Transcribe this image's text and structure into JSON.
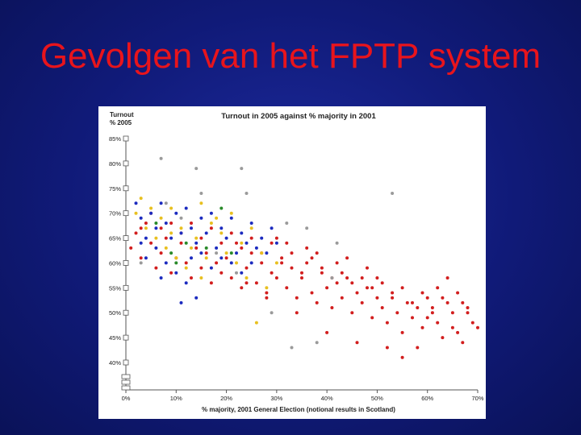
{
  "slide": {
    "title": "Gevolgen van het FPTP system"
  },
  "chart_data": {
    "type": "scatter",
    "title": "Turnout in 2005 against % majority in 2001",
    "ylabel_line1": "Turnout",
    "ylabel_line2": "% 2005",
    "xlabel": "% majority, 2001 General Election (notional results in Scotland)",
    "xlim": [
      0,
      70
    ],
    "ylim": [
      40,
      85
    ],
    "x_ticks": [
      "0%",
      "10%",
      "20%",
      "30%",
      "40%",
      "50%",
      "60%",
      "70%"
    ],
    "y_ticks": [
      "85%",
      "80%",
      "75%",
      "70%",
      "65%",
      "60%",
      "55%",
      "50%",
      "45%",
      "40%"
    ],
    "grid": false,
    "series": [
      {
        "color": "#d21e1e",
        "points": [
          [
            1,
            63
          ],
          [
            2,
            66
          ],
          [
            3,
            61
          ],
          [
            4,
            68
          ],
          [
            5,
            64
          ],
          [
            6,
            59
          ],
          [
            7,
            62
          ],
          [
            8,
            65
          ],
          [
            9,
            58
          ],
          [
            10,
            61
          ],
          [
            11,
            64
          ],
          [
            12,
            60
          ],
          [
            13,
            57
          ],
          [
            14,
            63
          ],
          [
            15,
            59
          ],
          [
            16,
            62
          ],
          [
            17,
            56
          ],
          [
            18,
            60
          ],
          [
            19,
            58
          ],
          [
            20,
            61
          ],
          [
            21,
            57
          ],
          [
            22,
            64
          ],
          [
            23,
            55
          ],
          [
            24,
            59
          ],
          [
            25,
            62
          ],
          [
            26,
            56
          ],
          [
            27,
            60
          ],
          [
            28,
            54
          ],
          [
            29,
            58
          ],
          [
            30,
            57
          ],
          [
            31,
            61
          ],
          [
            32,
            55
          ],
          [
            33,
            59
          ],
          [
            34,
            53
          ],
          [
            35,
            57
          ],
          [
            36,
            60
          ],
          [
            37,
            54
          ],
          [
            38,
            52
          ],
          [
            39,
            58
          ],
          [
            40,
            55
          ],
          [
            41,
            51
          ],
          [
            42,
            56
          ],
          [
            43,
            53
          ],
          [
            44,
            57
          ],
          [
            45,
            50
          ],
          [
            46,
            54
          ],
          [
            47,
            52
          ],
          [
            48,
            55
          ],
          [
            49,
            49
          ],
          [
            50,
            53
          ],
          [
            51,
            51
          ],
          [
            52,
            48
          ],
          [
            53,
            54
          ],
          [
            54,
            50
          ],
          [
            55,
            46
          ],
          [
            56,
            52
          ],
          [
            57,
            49
          ],
          [
            58,
            51
          ],
          [
            59,
            47
          ],
          [
            60,
            53
          ],
          [
            61,
            50
          ],
          [
            62,
            48
          ],
          [
            63,
            45
          ],
          [
            64,
            52
          ],
          [
            65,
            47
          ],
          [
            66,
            46
          ],
          [
            67,
            44
          ],
          [
            68,
            50
          ],
          [
            69,
            48
          ],
          [
            3,
            67
          ],
          [
            5,
            70
          ],
          [
            7,
            67
          ],
          [
            9,
            68
          ],
          [
            11,
            66
          ],
          [
            13,
            68
          ],
          [
            15,
            65
          ],
          [
            17,
            67
          ],
          [
            19,
            64
          ],
          [
            21,
            66
          ],
          [
            23,
            63
          ],
          [
            25,
            65
          ],
          [
            27,
            62
          ],
          [
            29,
            64
          ],
          [
            31,
            60
          ],
          [
            33,
            62
          ],
          [
            35,
            58
          ],
          [
            37,
            61
          ],
          [
            39,
            59
          ],
          [
            41,
            57
          ],
          [
            43,
            58
          ],
          [
            45,
            56
          ],
          [
            47,
            57
          ],
          [
            49,
            55
          ],
          [
            51,
            56
          ],
          [
            53,
            53
          ],
          [
            55,
            55
          ],
          [
            57,
            52
          ],
          [
            59,
            54
          ],
          [
            61,
            51
          ],
          [
            63,
            53
          ],
          [
            65,
            50
          ],
          [
            67,
            52
          ],
          [
            52,
            43
          ],
          [
            55,
            41
          ],
          [
            58,
            43
          ],
          [
            46,
            44
          ],
          [
            40,
            46
          ],
          [
            34,
            50
          ],
          [
            28,
            53
          ],
          [
            24,
            56
          ],
          [
            60,
            49
          ],
          [
            62,
            55
          ],
          [
            64,
            57
          ],
          [
            66,
            54
          ],
          [
            68,
            51
          ],
          [
            70,
            47
          ],
          [
            50,
            57
          ],
          [
            48,
            59
          ],
          [
            44,
            61
          ],
          [
            42,
            60
          ],
          [
            38,
            62
          ],
          [
            36,
            63
          ],
          [
            32,
            64
          ],
          [
            30,
            65
          ]
        ]
      },
      {
        "color": "#1c2bbf",
        "points": [
          [
            2,
            72
          ],
          [
            3,
            69
          ],
          [
            4,
            65
          ],
          [
            5,
            70
          ],
          [
            6,
            67
          ],
          [
            7,
            72
          ],
          [
            8,
            68
          ],
          [
            9,
            65
          ],
          [
            10,
            70
          ],
          [
            11,
            66
          ],
          [
            12,
            71
          ],
          [
            13,
            67
          ],
          [
            14,
            64
          ],
          [
            15,
            69
          ],
          [
            16,
            66
          ],
          [
            17,
            70
          ],
          [
            18,
            63
          ],
          [
            19,
            67
          ],
          [
            20,
            65
          ],
          [
            21,
            69
          ],
          [
            22,
            62
          ],
          [
            23,
            66
          ],
          [
            24,
            64
          ],
          [
            25,
            68
          ],
          [
            26,
            63
          ],
          [
            27,
            65
          ],
          [
            28,
            62
          ],
          [
            29,
            67
          ],
          [
            30,
            64
          ],
          [
            8,
            60
          ],
          [
            10,
            58
          ],
          [
            12,
            56
          ],
          [
            13,
            61
          ],
          [
            15,
            62
          ],
          [
            17,
            59
          ],
          [
            19,
            61
          ],
          [
            21,
            60
          ],
          [
            23,
            58
          ],
          [
            25,
            60
          ],
          [
            6,
            63
          ],
          [
            4,
            61
          ],
          [
            3,
            64
          ],
          [
            7,
            57
          ],
          [
            11,
            52
          ],
          [
            14,
            53
          ]
        ]
      },
      {
        "color": "#e8c020",
        "points": [
          [
            3,
            73
          ],
          [
            5,
            71
          ],
          [
            7,
            69
          ],
          [
            9,
            71
          ],
          [
            11,
            67
          ],
          [
            13,
            63
          ],
          [
            15,
            72
          ],
          [
            17,
            68
          ],
          [
            19,
            66
          ],
          [
            21,
            70
          ],
          [
            23,
            64
          ],
          [
            25,
            67
          ],
          [
            6,
            65
          ],
          [
            8,
            63
          ],
          [
            10,
            61
          ],
          [
            12,
            59
          ],
          [
            14,
            65
          ],
          [
            16,
            61
          ],
          [
            18,
            69
          ],
          [
            20,
            62
          ],
          [
            22,
            60
          ],
          [
            24,
            57
          ],
          [
            26,
            48
          ],
          [
            28,
            55
          ],
          [
            4,
            67
          ],
          [
            2,
            70
          ],
          [
            9,
            66
          ],
          [
            15,
            57
          ],
          [
            27,
            62
          ],
          [
            30,
            60
          ]
        ]
      },
      {
        "color": "#9a9a9a",
        "points": [
          [
            7,
            81
          ],
          [
            14,
            79
          ],
          [
            15,
            74
          ],
          [
            23,
            79
          ],
          [
            24,
            74
          ],
          [
            32,
            68
          ],
          [
            36,
            67
          ],
          [
            42,
            64
          ],
          [
            41,
            57
          ],
          [
            29,
            50
          ],
          [
            33,
            43
          ],
          [
            38,
            44
          ],
          [
            53,
            74
          ],
          [
            8,
            72
          ],
          [
            11,
            69
          ],
          [
            18,
            62
          ],
          [
            22,
            58
          ],
          [
            3,
            60
          ]
        ]
      },
      {
        "color": "#2a8a2a",
        "points": [
          [
            6,
            68
          ],
          [
            10,
            60
          ],
          [
            12,
            64
          ],
          [
            16,
            63
          ],
          [
            19,
            71
          ],
          [
            21,
            62
          ],
          [
            9,
            62
          ]
        ]
      }
    ]
  }
}
